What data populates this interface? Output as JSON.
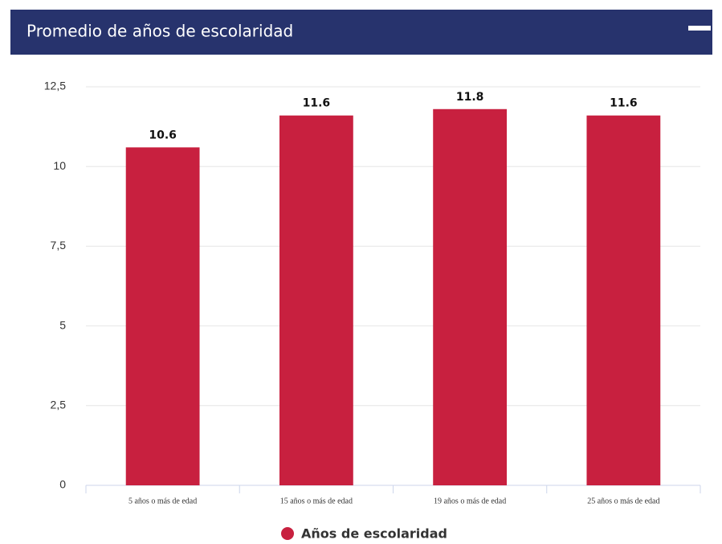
{
  "chart_data": {
    "type": "bar",
    "title": "Promedio de años de escolaridad",
    "categories": [
      "5 años o más de edad",
      "15 años o más de edad",
      "19 años o más de edad",
      "25 años o más de edad"
    ],
    "series": [
      {
        "name": "Años de escolaridad",
        "color": "#c8203f",
        "values": [
          10.6,
          11.6,
          11.8,
          11.6
        ]
      }
    ],
    "ylim": [
      0,
      12.5
    ],
    "yticks": [
      0,
      {
        "value": 2.5,
        "label": "2,5"
      },
      5,
      {
        "value": 7.5,
        "label": "7,5"
      },
      10,
      {
        "value": 12.5,
        "label": "12,5"
      }
    ],
    "grid": true,
    "legend": "bottom"
  }
}
